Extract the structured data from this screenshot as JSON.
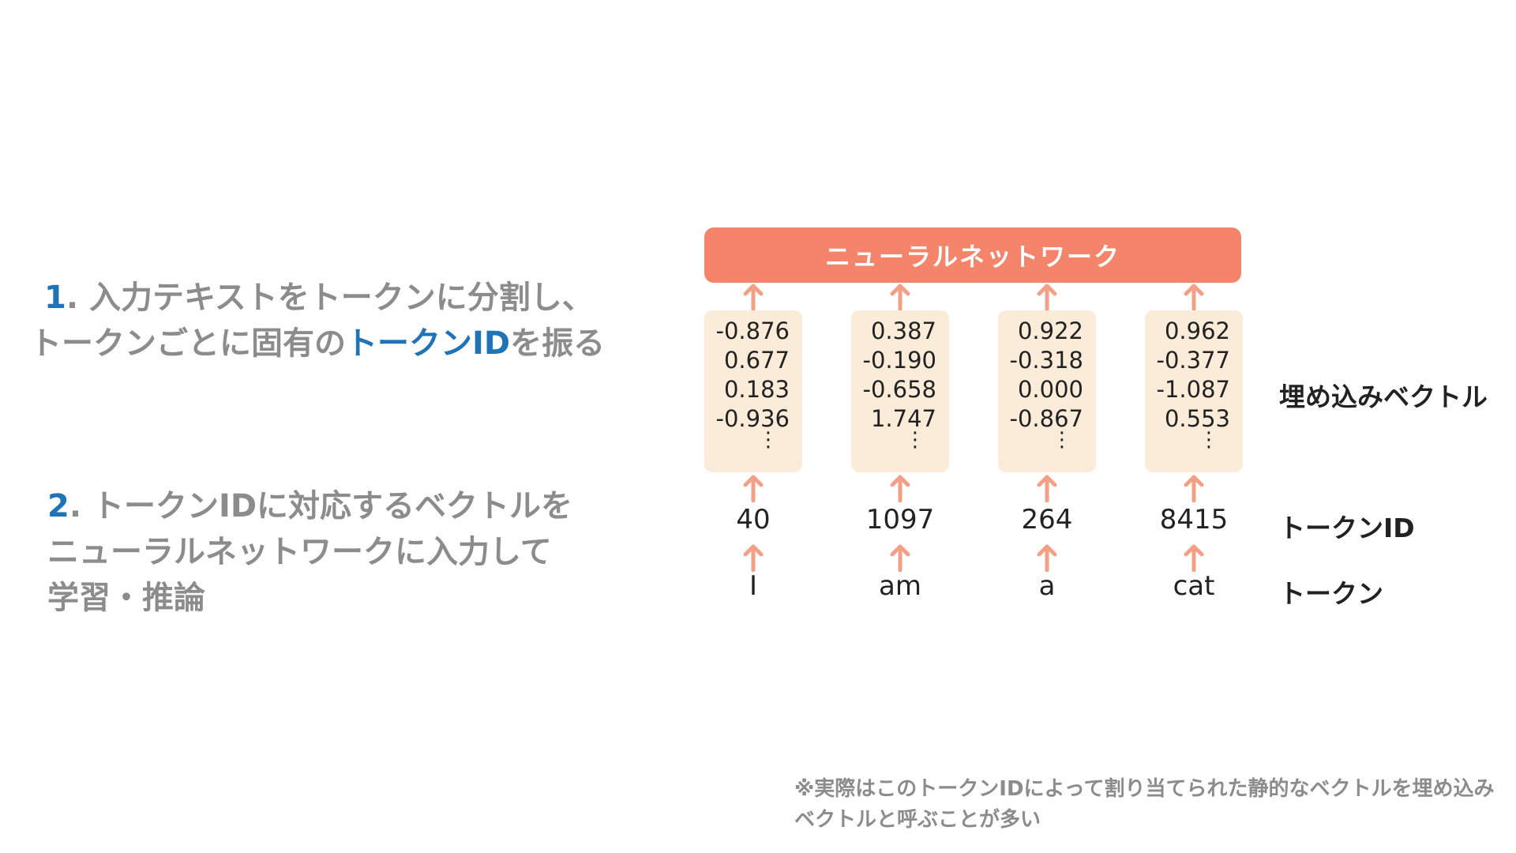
{
  "steps": [
    {
      "num": "1",
      "line1": ". 入力テキストをトークンに分割し、",
      "line2_pre": "トークンごとに固有の",
      "line2_highlight": "トークンID",
      "line2_post": "を振る"
    },
    {
      "num": "2",
      "line1": ". トークンIDに対応するベクトルを",
      "line2": "ニューラルネットワークに入力して",
      "line3": "学習・推論"
    }
  ],
  "diagram": {
    "network_label": "ニューラルネットワーク",
    "row_labels": {
      "vector": "埋め込みベクトル",
      "token_id": "トークンID",
      "token": "トークン"
    },
    "columns": [
      {
        "token": "I",
        "token_id": "40",
        "vector": [
          "-0.876",
          "0.677",
          "0.183",
          "-0.936"
        ]
      },
      {
        "token": "am",
        "token_id": "1097",
        "vector": [
          "0.387",
          "-0.190",
          "-0.658",
          "1.747"
        ]
      },
      {
        "token": "a",
        "token_id": "264",
        "vector": [
          "0.922",
          "-0.318",
          "0.000",
          "-0.867"
        ]
      },
      {
        "token": "cat",
        "token_id": "8415",
        "vector": [
          "0.962",
          "-0.377",
          "-1.087",
          "0.553"
        ]
      }
    ],
    "ellipsis": "⋮",
    "colors": {
      "network_box": "#f4856a",
      "arrow": "#f4a087",
      "vector_box": "#fbecd9",
      "highlight": "#1f73b7"
    }
  },
  "note": "※実際はこのトークンIDによって割り当てられた静的なベクトルを埋め込みベクトルと呼ぶことが多い"
}
